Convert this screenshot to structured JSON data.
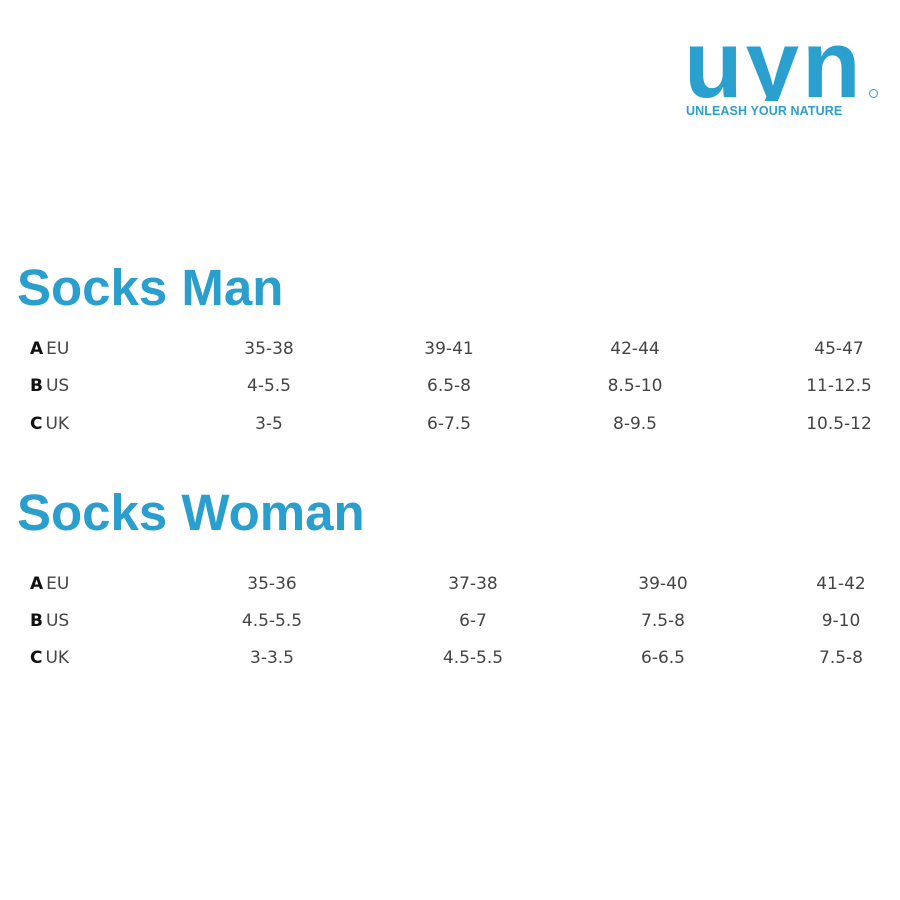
{
  "brand": {
    "name": "UYN",
    "tagline": "UNLEASH YOUR NATURE",
    "color": "#2aa0cf"
  },
  "tables": [
    {
      "title": "Socks Man",
      "rows": [
        {
          "letter": "A",
          "system": "EU",
          "values": [
            "35-38",
            "39-41",
            "42-44",
            "45-47"
          ]
        },
        {
          "letter": "B",
          "system": "US",
          "values": [
            "4-5.5",
            "6.5-8",
            "8.5-10",
            "11-12.5"
          ]
        },
        {
          "letter": "C",
          "system": "UK",
          "values": [
            "3-5",
            "6-7.5",
            "8-9.5",
            "10.5-12"
          ]
        }
      ]
    },
    {
      "title": "Socks Woman",
      "rows": [
        {
          "letter": "A",
          "system": "EU",
          "values": [
            "35-36",
            "37-38",
            "39-40",
            "41-42"
          ]
        },
        {
          "letter": "B",
          "system": "US",
          "values": [
            "4.5-5.5",
            "6-7",
            "7.5-8",
            "9-10"
          ]
        },
        {
          "letter": "C",
          "system": "UK",
          "values": [
            "3-3.5",
            "4.5-5.5",
            "6-6.5",
            "7.5-8"
          ]
        }
      ]
    }
  ]
}
